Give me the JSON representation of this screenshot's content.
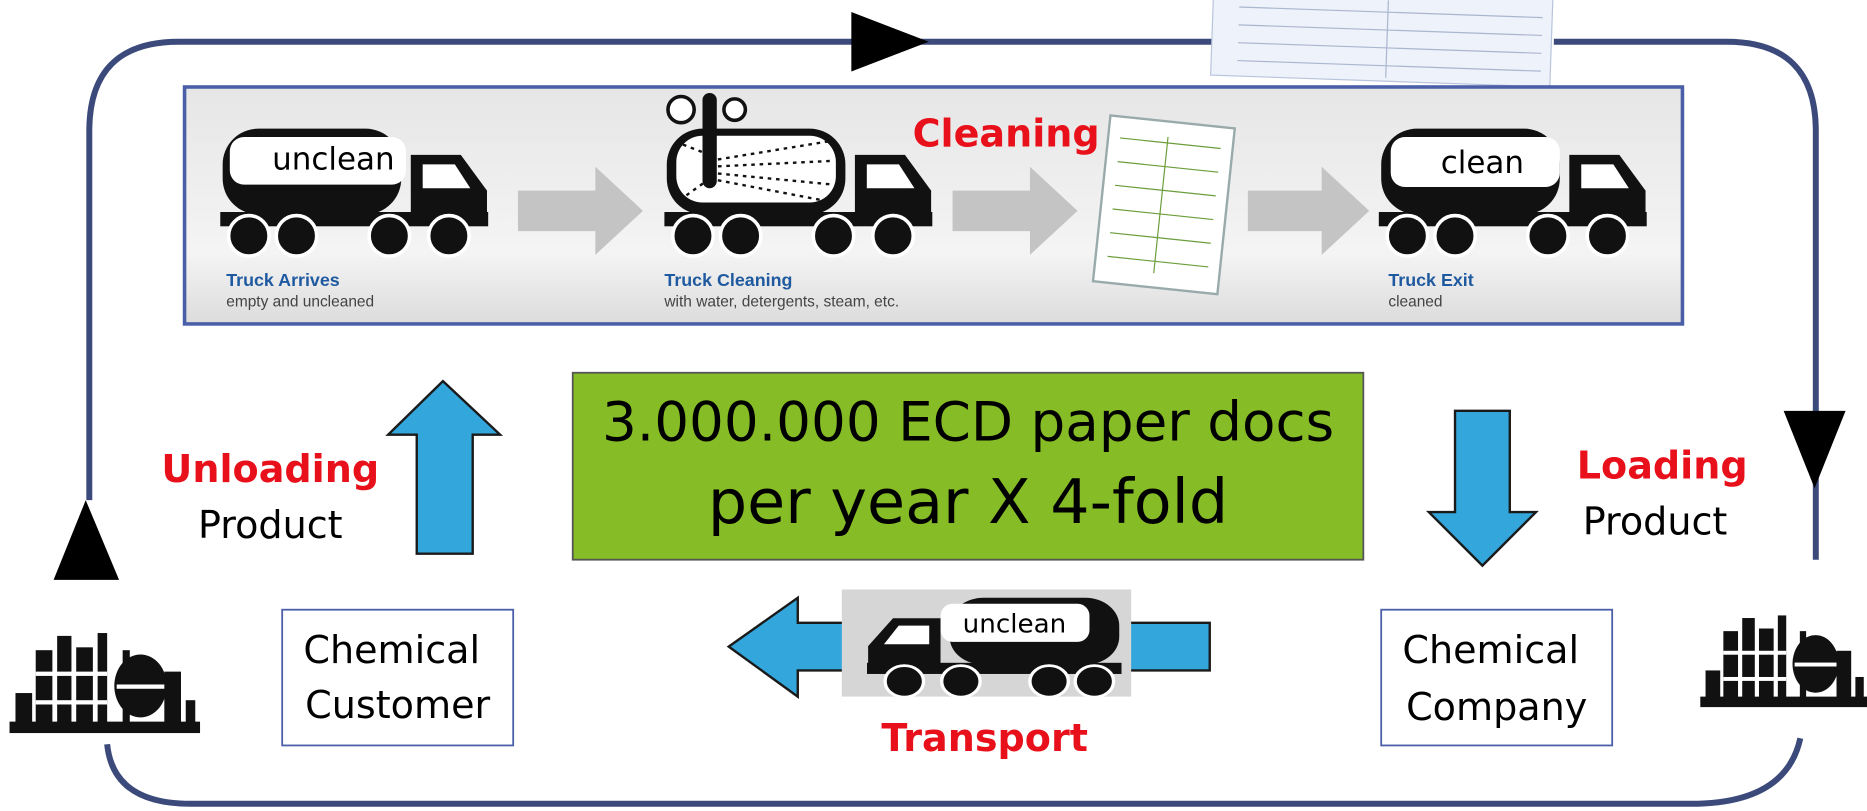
{
  "panel": {
    "truck_1": {
      "tank_label": "unclean",
      "title": "Truck Arrives",
      "caption": "empty and uncleaned"
    },
    "truck_2": {
      "title": "Truck Cleaning",
      "caption": "with water, detergents, steam, etc."
    },
    "cleaning_label": "Cleaning",
    "truck_3": {
      "tank_label": "clean",
      "title": "Truck Exit",
      "caption": "cleaned"
    }
  },
  "center_box": {
    "line_1": "3.000.000 ECD paper docs",
    "line_2": "per year X 4-fold"
  },
  "unloading": {
    "keyword": "Unloading",
    "word": "Product"
  },
  "loading": {
    "keyword": "Loading",
    "word": "Product"
  },
  "customer_box": {
    "line_1": "Chemical",
    "line_2": "Customer"
  },
  "company_box": {
    "line_1": "Chemical",
    "line_2": "Company"
  },
  "transport": {
    "tank_label": "unclean",
    "label": "Transport"
  }
}
